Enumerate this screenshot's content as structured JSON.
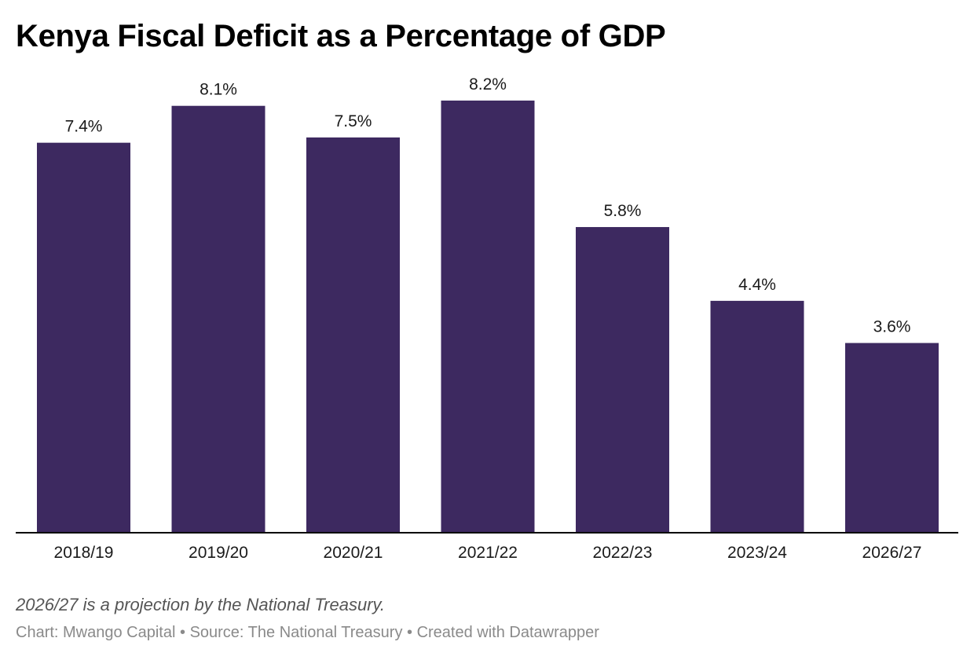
{
  "chart_data": {
    "type": "bar",
    "title": "Kenya Fiscal Deficit as a Percentage of GDP",
    "categories": [
      "2018/19",
      "2019/20",
      "2020/21",
      "2021/22",
      "2022/23",
      "2023/24",
      "2026/27"
    ],
    "values": [
      7.4,
      8.1,
      7.5,
      8.2,
      5.8,
      4.4,
      3.6
    ],
    "value_labels": [
      "7.4%",
      "8.1%",
      "7.5%",
      "8.2%",
      "5.8%",
      "4.4%",
      "3.6%"
    ],
    "xlabel": "",
    "ylabel": "",
    "ylim": [
      0,
      8.2
    ],
    "grid": false,
    "bar_color": "#3d2960",
    "axis_color": "#000000"
  },
  "note": "2026/27 is a projection by the National Treasury.",
  "footer": {
    "credit": "Chart: Mwango Capital",
    "source": "Source: The National Treasury",
    "tool": "Created with Datawrapper",
    "separator": " • "
  }
}
